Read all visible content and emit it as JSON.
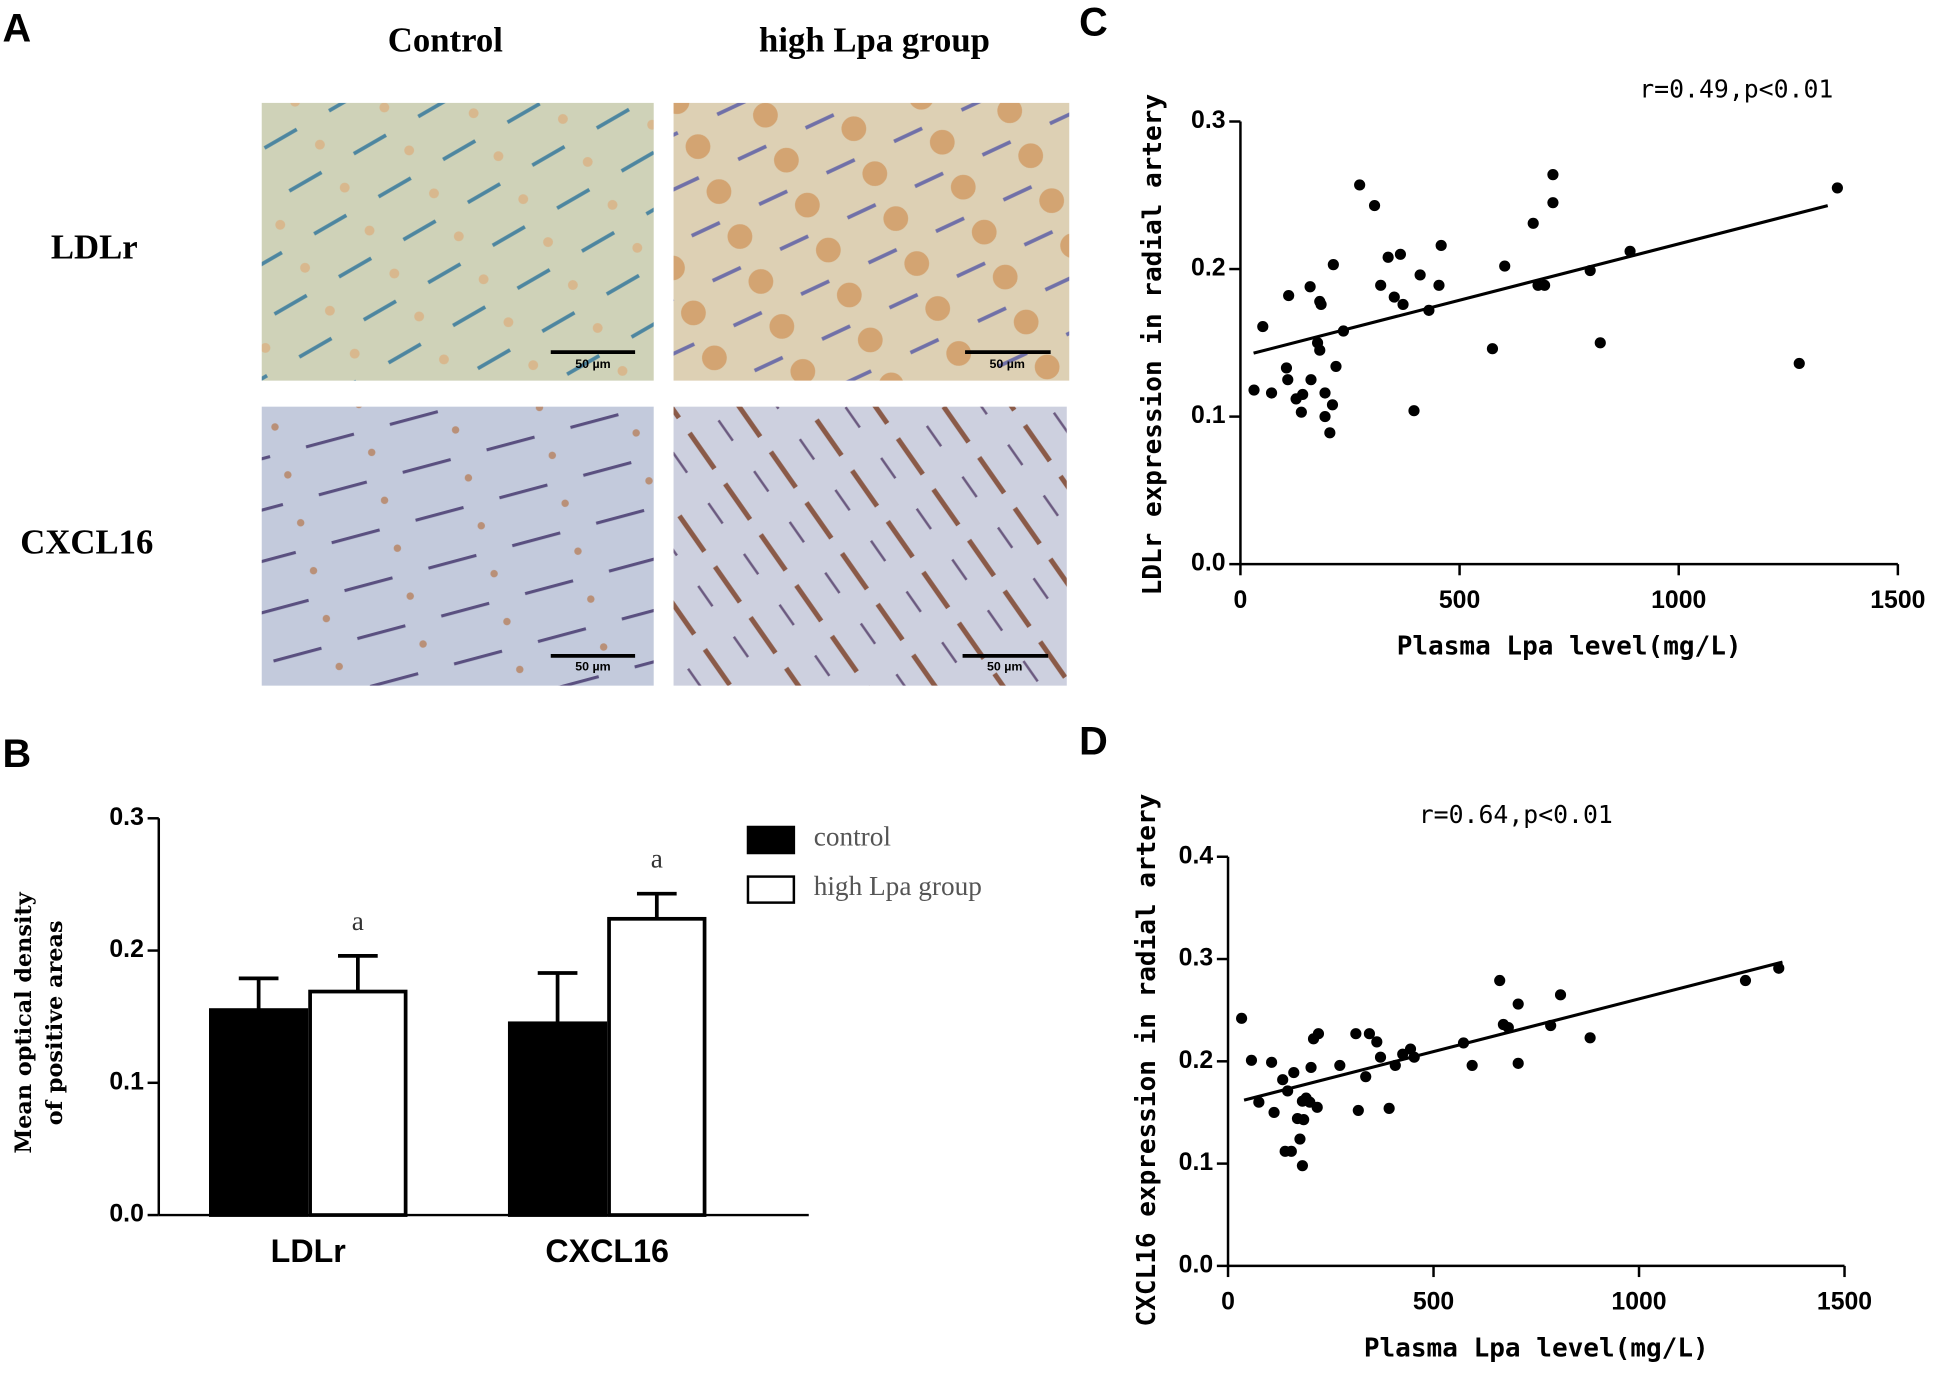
{
  "micrographs": {
    "panel_label": "A",
    "columns": [
      "Control",
      "high Lpa group"
    ],
    "rows": [
      "LDLr",
      "CXCL16"
    ],
    "scale_bar": "50 µm"
  },
  "chart_data": [
    {
      "type": "bar",
      "panel_label": "B",
      "ylabel": [
        "Mean optical density",
        "of positive areas"
      ],
      "categories": [
        "LDLr",
        "CXCL16"
      ],
      "series": [
        {
          "name": "control",
          "color": "#000000",
          "values": [
            0.155,
            0.145
          ],
          "errors": [
            0.024,
            0.038
          ]
        },
        {
          "name": "high Lpa group",
          "color": "#ffffff",
          "values": [
            0.169,
            0.224
          ],
          "errors": [
            0.027,
            0.019
          ],
          "significance_labels": [
            "a",
            "a"
          ]
        }
      ],
      "ylim": [
        0,
        0.3
      ],
      "yticks": [
        {
          "value": 0,
          "label": "0.0"
        },
        0.1,
        0.2,
        0.3
      ],
      "legend": "upper right"
    },
    {
      "type": "scatter",
      "panel_label": "C",
      "annotation": "r=0.49,p<0.01",
      "xlabel": "Plasma Lpa level(mg/L)",
      "ylabel": "LDLr expression in radial artery",
      "color": "#000000",
      "x": [
        31,
        51,
        71,
        105,
        108,
        110,
        127,
        139,
        142,
        159,
        161,
        176,
        181,
        184,
        181,
        193,
        193,
        204,
        210,
        212,
        218,
        235,
        272,
        306,
        320,
        337,
        351,
        365,
        371,
        396,
        410,
        430,
        453,
        458,
        575,
        603,
        668,
        679,
        694,
        713,
        713,
        798,
        821,
        889,
        1275,
        1362
      ],
      "values": [
        0.118,
        0.161,
        0.116,
        0.133,
        0.125,
        0.182,
        0.112,
        0.103,
        0.115,
        0.188,
        0.125,
        0.15,
        0.178,
        0.176,
        0.145,
        0.116,
        0.1,
        0.089,
        0.108,
        0.203,
        0.134,
        0.158,
        0.257,
        0.243,
        0.189,
        0.208,
        0.181,
        0.21,
        0.176,
        0.104,
        0.196,
        0.172,
        0.189,
        0.216,
        0.146,
        0.202,
        0.231,
        0.189,
        0.189,
        0.245,
        0.264,
        0.199,
        0.15,
        0.212,
        0.136,
        0.255
      ],
      "fit_line": {
        "x": [
          30,
          1340
        ],
        "y": [
          0.143,
          0.243
        ]
      },
      "xlim": [
        0,
        1500
      ],
      "xticks": [
        0,
        500,
        1000,
        1500
      ],
      "ylim": [
        0,
        0.3
      ],
      "yticks": [
        {
          "value": 0,
          "label": "0.0"
        },
        0.1,
        0.2,
        0.3
      ]
    },
    {
      "type": "scatter",
      "panel_label": "D",
      "annotation": "r=0.64,p<0.01",
      "xlabel": "Plasma Lpa level(mg/L)",
      "ylabel": "CXCL16 expression in radial artery",
      "color": "#000000",
      "x": [
        33,
        57,
        75,
        106,
        112,
        133,
        139,
        145,
        154,
        160,
        169,
        175,
        181,
        181,
        184,
        190,
        199,
        202,
        208,
        217,
        220,
        272,
        311,
        317,
        335,
        344,
        362,
        371,
        392,
        407,
        425,
        444,
        453,
        573,
        594,
        661,
        670,
        682,
        706,
        706,
        785,
        809,
        881,
        1259,
        1340
      ],
      "values": [
        0.242,
        0.201,
        0.16,
        0.199,
        0.15,
        0.182,
        0.112,
        0.171,
        0.112,
        0.189,
        0.144,
        0.124,
        0.098,
        0.161,
        0.143,
        0.164,
        0.16,
        0.194,
        0.222,
        0.155,
        0.227,
        0.196,
        0.227,
        0.152,
        0.185,
        0.227,
        0.219,
        0.204,
        0.154,
        0.196,
        0.207,
        0.212,
        0.204,
        0.218,
        0.196,
        0.279,
        0.236,
        0.233,
        0.256,
        0.198,
        0.235,
        0.265,
        0.223,
        0.279,
        0.291
      ],
      "fit_line": {
        "x": [
          39,
          1349
        ],
        "y": [
          0.162,
          0.297
        ]
      },
      "xlim": [
        0,
        1500
      ],
      "xticks": [
        0,
        500,
        1000,
        1500
      ],
      "ylim": [
        0,
        0.4
      ],
      "yticks": [
        {
          "value": 0,
          "label": "0.0"
        },
        0.1,
        0.2,
        0.3,
        0.4
      ]
    }
  ]
}
